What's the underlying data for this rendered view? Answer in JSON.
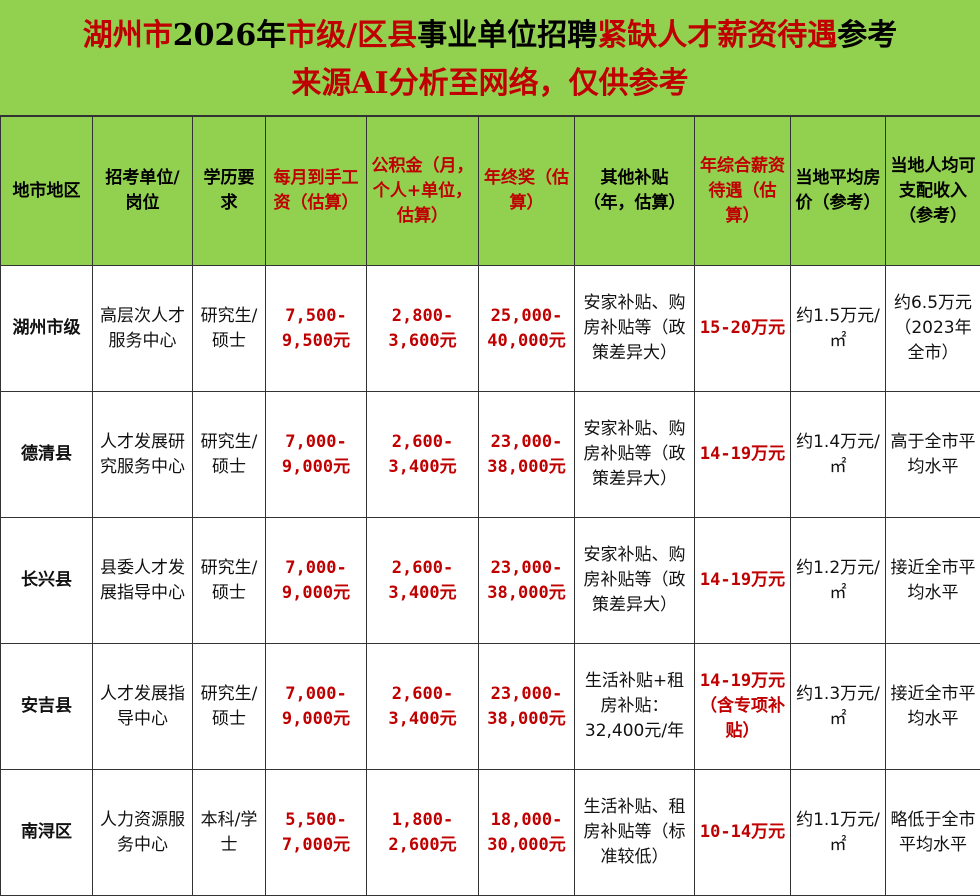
{
  "title": {
    "line1": [
      {
        "text": "湖州市",
        "red": true
      },
      {
        "text": "2026年",
        "red": false
      },
      {
        "text": "市级/区县",
        "red": true
      },
      {
        "text": "事业单位招聘",
        "red": false
      },
      {
        "text": "紧缺人才薪资待遇",
        "red": true
      },
      {
        "text": "参考",
        "red": false
      }
    ],
    "line2": "来源AI分析至网络，仅供参考"
  },
  "headers": [
    {
      "label": "地市地区",
      "red": false
    },
    {
      "label": "招考单位/岗位",
      "red": false
    },
    {
      "label": "学历要求",
      "red": false
    },
    {
      "label": "每月到手工资（估算）",
      "red": true
    },
    {
      "label": "公积金（月，个人+单位，估算）",
      "red": true
    },
    {
      "label": "年终奖（估算）",
      "red": true
    },
    {
      "label": "其他补贴（年，估算）",
      "red": false
    },
    {
      "label": "年综合薪资待遇（估算）",
      "red": true
    },
    {
      "label": "当地平均房价（参考）",
      "red": false
    },
    {
      "label": "当地人均可支配收入（参考）",
      "red": false
    }
  ],
  "rows": [
    [
      "湖州市级",
      "高层次人才服务中心",
      "研究生/硕士",
      "7,500-9,500元",
      "2,800-3,600元",
      "25,000-40,000元",
      "安家补贴、购房补贴等（政策差异大）",
      "15-20万元",
      "约1.5万元/㎡",
      "约6.5万元（2023年全市）"
    ],
    [
      "德清县",
      "人才发展研究服务中心",
      "研究生/硕士",
      "7,000-9,000元",
      "2,600-3,400元",
      "23,000-38,000元",
      "安家补贴、购房补贴等（政策差异大）",
      "14-19万元",
      "约1.4万元/㎡",
      "高于全市平均水平"
    ],
    [
      "长兴县",
      "县委人才发展指导中心",
      "研究生/硕士",
      "7,000-9,000元",
      "2,600-3,400元",
      "23,000-38,000元",
      "安家补贴、购房补贴等（政策差异大）",
      "14-19万元",
      "约1.2万元/㎡",
      "接近全市平均水平"
    ],
    [
      "安吉县",
      "人才发展指导中心",
      "研究生/硕士",
      "7,000-9,000元",
      "2,600-3,400元",
      "23,000-38,000元",
      "生活补贴+租房补贴：32,400元/年",
      "14-19万元（含专项补贴）",
      "约1.3万元/㎡",
      "接近全市平均水平"
    ],
    [
      "南浔区",
      "人力资源服务中心",
      "本科/学士",
      "5,500-7,000元",
      "1,800-2,600元",
      "18,000-30,000元",
      "生活补贴、租房补贴等（标准较低）",
      "10-14万元",
      "约1.1万元/㎡",
      "略低于全市平均水平"
    ]
  ],
  "colors": {
    "header_bg": "#92d050",
    "accent_red": "#c00000",
    "border": "#333333"
  }
}
